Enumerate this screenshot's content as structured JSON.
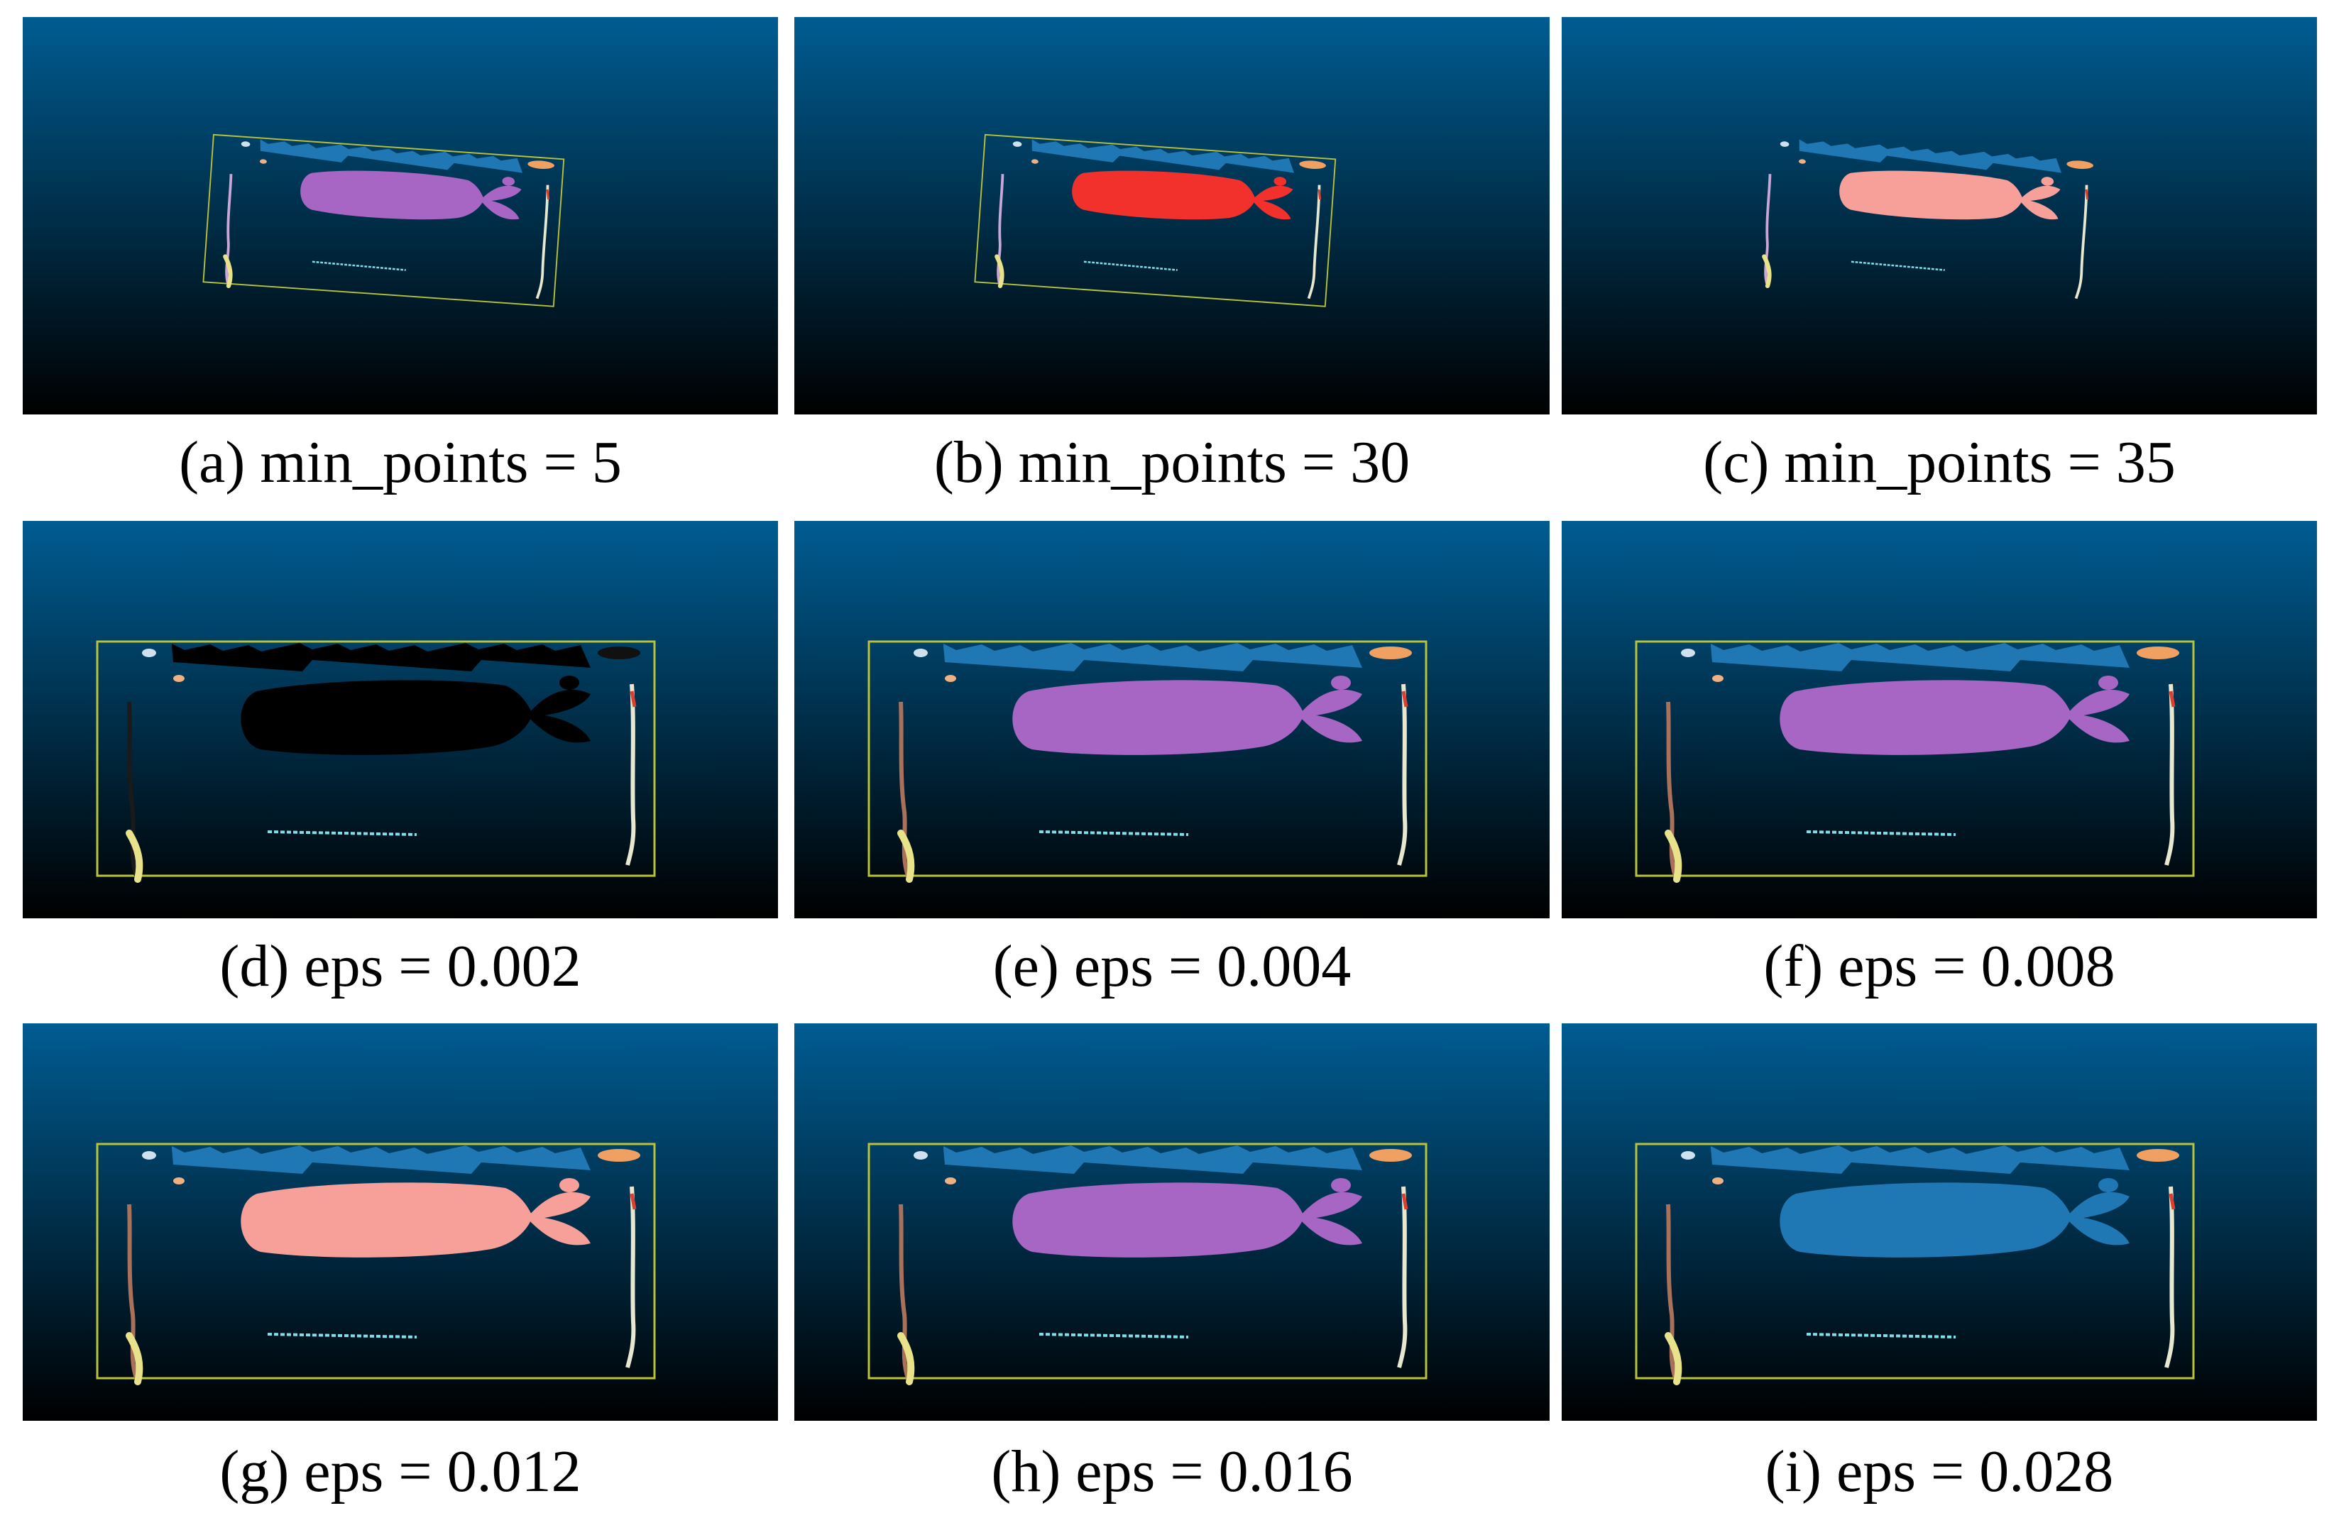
{
  "figure": {
    "panels": [
      {
        "id": "a",
        "caption": "(a) min_points = 5",
        "tilted": true,
        "fish_color": "#a766c3",
        "box_color": "#b8c23a",
        "side_color": "#c9a7d8"
      },
      {
        "id": "b",
        "caption": "(b) min_points = 30",
        "tilted": true,
        "fish_color": "#f2312c",
        "box_color": "#b8c23a",
        "side_color": "#c9a7d8"
      },
      {
        "id": "c",
        "caption": "(c) min_points = 35",
        "tilted": true,
        "fish_color": "#f7a09a",
        "box_color": "none",
        "side_color": "#c9a7d8"
      },
      {
        "id": "d",
        "caption": "(d) eps = 0.002",
        "tilted": false,
        "fish_color": "#000000",
        "box_color": "#b8c23a",
        "side_color": "#1a1a1a"
      },
      {
        "id": "e",
        "caption": "(e) eps = 0.004",
        "tilted": false,
        "fish_color": "#a766c3",
        "box_color": "#b8c23a",
        "side_color": "#a9705a"
      },
      {
        "id": "f",
        "caption": "(f) eps = 0.008",
        "tilted": false,
        "fish_color": "#a766c3",
        "box_color": "#b8c23a",
        "side_color": "#a9705a"
      },
      {
        "id": "g",
        "caption": "(g) eps = 0.012",
        "tilted": false,
        "fish_color": "#f7a09a",
        "box_color": "#b8c23a",
        "side_color": "#a9705a"
      },
      {
        "id": "h",
        "caption": "(h) eps = 0.016",
        "tilted": false,
        "fish_color": "#a766c3",
        "box_color": "#b8c23a",
        "side_color": "#a9705a"
      },
      {
        "id": "i",
        "caption": "(i) eps = 0.028",
        "tilted": false,
        "fish_color": "#1f77b4",
        "box_color": "#b8c23a",
        "side_color": "#a9705a"
      }
    ],
    "colors": {
      "bg_top": "#005c92",
      "bg_bottom": "#000000",
      "top_band": "#1f77b4",
      "bottom_line": "#7fdfe8",
      "left_cluster": "#e8e28a",
      "right_cluster": "#e8e8d0",
      "accent_orange": "#f0a060"
    }
  }
}
